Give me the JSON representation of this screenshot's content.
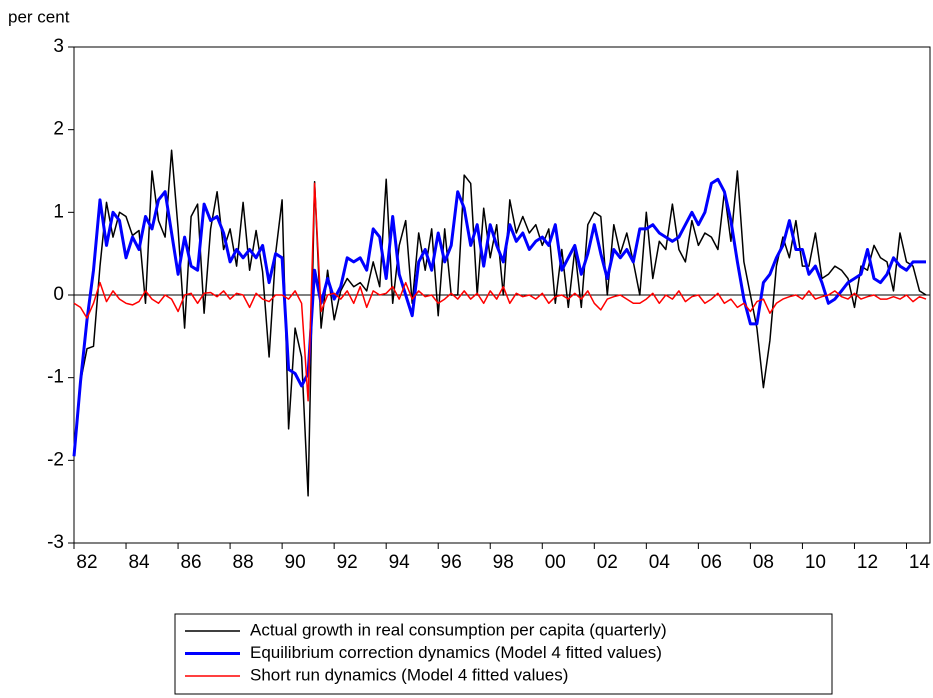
{
  "chart_data": {
    "type": "line",
    "y_label": "per cent",
    "categories": [
      "82",
      null,
      null,
      null,
      null,
      null,
      null,
      null,
      "84",
      null,
      null,
      null,
      null,
      null,
      null,
      null,
      "86",
      null,
      null,
      null,
      null,
      null,
      null,
      null,
      "88",
      null,
      null,
      null,
      null,
      null,
      null,
      null,
      "90",
      null,
      null,
      null,
      null,
      null,
      null,
      null,
      "92",
      null,
      null,
      null,
      null,
      null,
      null,
      null,
      "94",
      null,
      null,
      null,
      null,
      null,
      null,
      null,
      "96",
      null,
      null,
      null,
      null,
      null,
      null,
      null,
      "98",
      null,
      null,
      null,
      null,
      null,
      null,
      null,
      "00",
      null,
      null,
      null,
      null,
      null,
      null,
      null,
      "02",
      null,
      null,
      null,
      null,
      null,
      null,
      null,
      "04",
      null,
      null,
      null,
      null,
      null,
      null,
      null,
      "06",
      null,
      null,
      null,
      null,
      null,
      null,
      null,
      "08",
      null,
      null,
      null,
      null,
      null,
      null,
      null,
      "10",
      null,
      null,
      null,
      null,
      null,
      null,
      null,
      "12",
      null,
      null,
      null,
      null,
      null,
      null,
      null,
      "14",
      null,
      null,
      null
    ],
    "series": [
      {
        "name": "Actual growth in real consumption per capita (quarterly)",
        "color": "#000000",
        "width": 1.5,
        "values": [
          -1.95,
          -1.05,
          -0.65,
          -0.62,
          0.35,
          1.12,
          0.7,
          1.0,
          0.95,
          0.72,
          0.78,
          -0.1,
          1.5,
          0.9,
          0.7,
          1.75,
          0.8,
          -0.4,
          0.95,
          1.1,
          -0.22,
          0.8,
          1.25,
          0.55,
          0.8,
          0.35,
          1.12,
          0.3,
          0.78,
          0.28,
          -0.75,
          0.5,
          1.15,
          -1.62,
          -0.4,
          -0.75,
          -2.43,
          1.37,
          -0.4,
          0.3,
          -0.3,
          0.05,
          0.2,
          0.1,
          0.15,
          0.05,
          0.4,
          0.1,
          1.4,
          -0.1,
          0.6,
          0.9,
          -0.1,
          0.75,
          0.3,
          0.8,
          -0.25,
          0.8,
          0.0,
          0.0,
          1.45,
          1.35,
          0.0,
          1.05,
          0.45,
          0.85,
          0.0,
          1.15,
          0.75,
          0.95,
          0.75,
          0.85,
          0.6,
          0.8,
          -0.1,
          0.55,
          -0.15,
          0.55,
          -0.15,
          0.85,
          1.0,
          0.95,
          0.0,
          0.85,
          0.5,
          0.75,
          0.4,
          0.0,
          1.0,
          0.2,
          0.65,
          0.55,
          1.1,
          0.55,
          0.4,
          0.9,
          0.6,
          0.75,
          0.7,
          0.55,
          1.25,
          0.65,
          1.5,
          0.4,
          0.0,
          -0.4,
          -1.12,
          -0.55,
          0.35,
          0.7,
          0.45,
          0.9,
          0.35,
          0.35,
          0.75,
          0.2,
          0.25,
          0.35,
          0.3,
          0.2,
          -0.15,
          0.35,
          0.3,
          0.6,
          0.45,
          0.4,
          0.05,
          0.75,
          0.4,
          0.35,
          0.05,
          0.0
        ]
      },
      {
        "name": "Equilibrium correction dynamics (Model 4 fitted values)",
        "color": "#0000ff",
        "width": 3,
        "values": [
          -1.95,
          -1.05,
          -0.3,
          0.3,
          1.15,
          0.6,
          1.0,
          0.9,
          0.45,
          0.7,
          0.55,
          0.95,
          0.8,
          1.15,
          1.25,
          0.75,
          0.25,
          0.7,
          0.35,
          0.3,
          1.1,
          0.9,
          0.95,
          0.75,
          0.4,
          0.55,
          0.45,
          0.55,
          0.45,
          0.6,
          0.15,
          0.5,
          0.45,
          -0.9,
          -0.95,
          -1.1,
          -0.95,
          0.3,
          -0.1,
          0.2,
          -0.05,
          0.1,
          0.45,
          0.4,
          0.45,
          0.3,
          0.8,
          0.7,
          0.2,
          0.95,
          0.25,
          0.0,
          -0.25,
          0.4,
          0.55,
          0.3,
          0.75,
          0.4,
          0.6,
          1.25,
          1.05,
          0.6,
          0.85,
          0.35,
          0.85,
          0.6,
          0.4,
          0.85,
          0.65,
          0.75,
          0.55,
          0.65,
          0.7,
          0.6,
          0.85,
          0.3,
          0.45,
          0.6,
          0.25,
          0.5,
          0.85,
          0.5,
          0.2,
          0.55,
          0.45,
          0.55,
          0.4,
          0.8,
          0.8,
          0.85,
          0.75,
          0.7,
          0.65,
          0.7,
          0.85,
          1.0,
          0.85,
          1.0,
          1.35,
          1.4,
          1.25,
          0.9,
          0.4,
          -0.05,
          -0.35,
          -0.35,
          0.15,
          0.25,
          0.45,
          0.6,
          0.9,
          0.55,
          0.55,
          0.25,
          0.35,
          0.15,
          -0.1,
          -0.05,
          0.05,
          0.15,
          0.2,
          0.25,
          0.55,
          0.2,
          0.15,
          0.25,
          0.45,
          0.35,
          0.3,
          0.4,
          0.4,
          0.4
        ]
      },
      {
        "name": "Short run dynamics (Model 4 fitted values)",
        "color": "#ff0000",
        "width": 1.5,
        "values": [
          -0.1,
          -0.15,
          -0.28,
          -0.1,
          0.15,
          -0.08,
          0.05,
          -0.05,
          -0.1,
          -0.12,
          -0.08,
          0.05,
          -0.05,
          -0.1,
          0.0,
          -0.05,
          -0.2,
          0.0,
          0.02,
          -0.1,
          0.02,
          0.03,
          -0.02,
          0.05,
          -0.05,
          0.02,
          0.0,
          -0.15,
          0.02,
          -0.05,
          -0.08,
          0.0,
          0.0,
          -0.05,
          0.05,
          -0.1,
          -1.28,
          1.35,
          -0.2,
          0.0,
          0.02,
          -0.05,
          0.05,
          -0.1,
          0.1,
          -0.15,
          0.05,
          0.0,
          0.02,
          0.1,
          -0.05,
          0.15,
          -0.05,
          0.05,
          -0.02,
          0.0,
          -0.1,
          -0.05,
          0.02,
          -0.05,
          0.05,
          -0.05,
          0.02,
          -0.1,
          0.05,
          -0.05,
          0.1,
          -0.1,
          0.02,
          -0.02,
          0.0,
          -0.05,
          0.02,
          -0.1,
          -0.02,
          0.0,
          -0.05,
          0.02,
          -0.05,
          0.05,
          -0.1,
          -0.18,
          -0.05,
          -0.02,
          0.0,
          -0.05,
          -0.1,
          -0.1,
          -0.05,
          0.02,
          -0.1,
          0.0,
          -0.05,
          0.05,
          -0.08,
          -0.02,
          0.0,
          -0.1,
          -0.05,
          0.02,
          -0.1,
          -0.05,
          -0.15,
          -0.1,
          -0.2,
          -0.08,
          -0.05,
          -0.22,
          -0.1,
          -0.05,
          -0.02,
          0.0,
          -0.05,
          0.05,
          -0.05,
          -0.02,
          0.0,
          0.05,
          -0.02,
          -0.05,
          0.02,
          -0.05,
          -0.02,
          0.0,
          -0.05,
          -0.05,
          -0.02,
          -0.05,
          0.0,
          -0.08,
          -0.02,
          -0.05
        ]
      }
    ],
    "ylim": [
      -3,
      3
    ],
    "yticks": [
      -3,
      -2,
      -1,
      0,
      1,
      2,
      3
    ],
    "zero_line": true,
    "grid": false,
    "legend": "bottom"
  }
}
